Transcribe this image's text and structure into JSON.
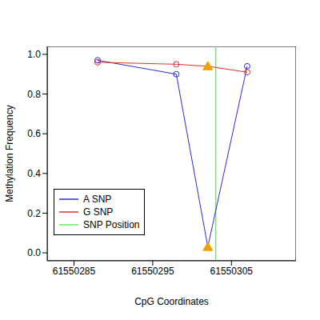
{
  "chart_data": {
    "type": "line",
    "x_label": "CpG Coordinates",
    "y_label": "Methylation Frequency",
    "x": [
      61550288,
      61550298,
      61550302,
      61550307
    ],
    "series": [
      {
        "name": "A SNP",
        "color": "#2b2bd6",
        "values": [
          0.97,
          0.9,
          0.03,
          0.94
        ]
      },
      {
        "name": "G SNP",
        "color": "#e0302a",
        "values": [
          0.96,
          0.95,
          0.94,
          0.91
        ]
      }
    ],
    "reference_line": {
      "name": "SNP Position",
      "x": 61550303,
      "color": "#66ee66"
    },
    "highlight": {
      "x": 61550302,
      "color": "#f0a000",
      "marker": "triangle"
    },
    "marker": "circle",
    "xlim": [
      61550281.6,
      61550313.2
    ],
    "xticks": [
      61550285,
      61550295,
      61550305
    ],
    "ylim": [
      -0.04,
      1.04
    ],
    "yticks": [
      {
        "value": 0,
        "label": "0.0"
      },
      {
        "value": 0.2,
        "label": "0.2"
      },
      {
        "value": 0.4,
        "label": "0.4"
      },
      {
        "value": 0.6,
        "label": "0.6"
      },
      {
        "value": 0.8,
        "label": "0.8"
      },
      {
        "value": 1,
        "label": "1.0"
      }
    ],
    "legend": "lower left",
    "grid": false
  }
}
